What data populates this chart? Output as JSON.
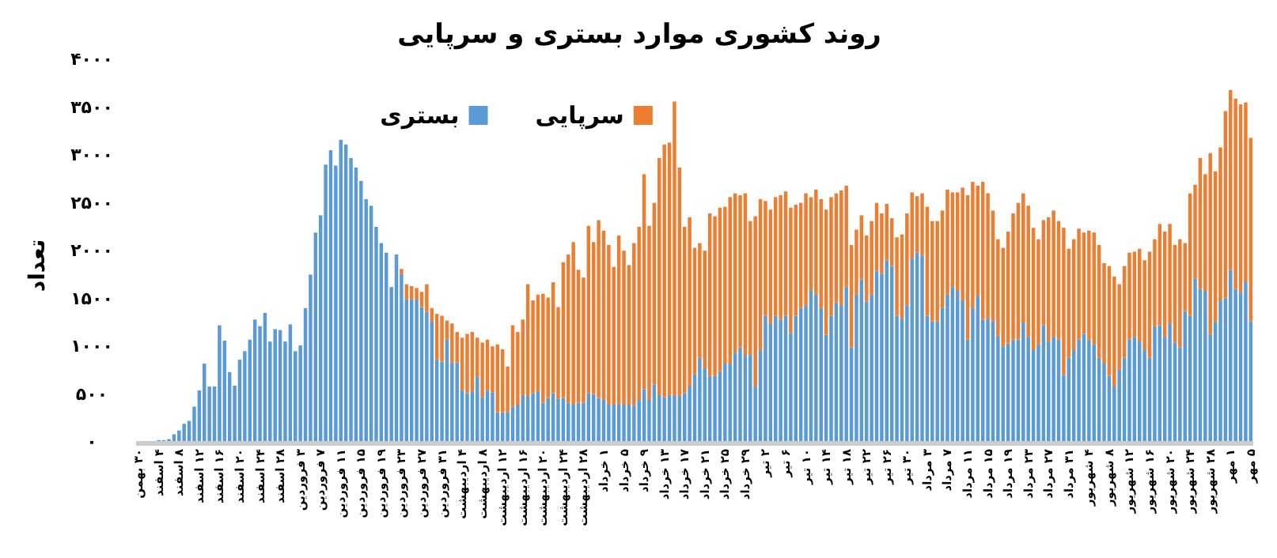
{
  "chart_data": {
    "type": "bar",
    "stacked": true,
    "title": "روند کشوری موارد بستری و سرپایی",
    "ylabel": "تعداد",
    "legend": "top",
    "ylim": [
      0,
      4000
    ],
    "yticks": [
      {
        "value": 0,
        "label": "۰"
      },
      {
        "value": 500,
        "label": "۵۰۰"
      },
      {
        "value": 1000,
        "label": "۱۰۰۰"
      },
      {
        "value": 1500,
        "label": "۱۵۰۰"
      },
      {
        "value": 2000,
        "label": "۲۰۰۰"
      },
      {
        "value": 2500,
        "label": "۲۵۰۰"
      },
      {
        "value": 3000,
        "label": "۳۰۰۰"
      },
      {
        "value": 3500,
        "label": "۳۵۰۰"
      },
      {
        "value": 4000,
        "label": "۴۰۰۰"
      }
    ],
    "categories": [
      "۳۰ بهمن",
      null,
      null,
      null,
      "۴ اسفند",
      null,
      null,
      null,
      "۸ اسفند",
      null,
      null,
      null,
      "۱۲ اسفند",
      null,
      null,
      null,
      "۱۶ اسفند",
      null,
      null,
      null,
      "۲۰ اسفند",
      null,
      null,
      null,
      "۲۴ اسفند",
      null,
      null,
      null,
      "۲۸ اسفند",
      null,
      null,
      null,
      "۳ فروردین",
      null,
      null,
      null,
      "۷ فروردین",
      null,
      null,
      null,
      "۱۱ فروردین",
      null,
      null,
      null,
      "۱۵ فروردین",
      null,
      null,
      null,
      "۱۹ فروردین",
      null,
      null,
      null,
      "۲۳ فروردین",
      null,
      null,
      null,
      "۲۷ فروردین",
      null,
      null,
      null,
      "۳۱ فروردین",
      null,
      null,
      null,
      "۴ اردیبهشت",
      null,
      null,
      null,
      "۸ اردیبهشت",
      null,
      null,
      null,
      "۱۲ اردیبهشت",
      null,
      null,
      null,
      "۱۶ اردیبهشت",
      null,
      null,
      null,
      "۲۰ اردیبهشت",
      null,
      null,
      null,
      "۲۴ اردیبهشت",
      null,
      null,
      null,
      "۲۸ اردیبهشت",
      null,
      null,
      null,
      "۱ خرداد",
      null,
      null,
      null,
      "۵ خرداد",
      null,
      null,
      null,
      "۹ خرداد",
      null,
      null,
      null,
      "۱۳ خرداد",
      null,
      null,
      null,
      "۱۷ خرداد",
      null,
      null,
      null,
      "۲۱ خرداد",
      null,
      null,
      null,
      "۲۵ خرداد",
      null,
      null,
      null,
      "۲۹ خرداد",
      null,
      null,
      null,
      "۲ تیر",
      null,
      null,
      null,
      "۶ تیر",
      null,
      null,
      null,
      "۱۰ تیر",
      null,
      null,
      null,
      "۱۴ تیر",
      null,
      null,
      null,
      "۱۸ تیر",
      null,
      null,
      null,
      "۲۲ تیر",
      null,
      null,
      null,
      "۲۶ تیر",
      null,
      null,
      null,
      "۳۰ تیر",
      null,
      null,
      null,
      "۳ مرداد",
      null,
      null,
      null,
      "۷ مرداد",
      null,
      null,
      null,
      "۱۱ مرداد",
      null,
      null,
      null,
      "۱۵ مرداد",
      null,
      null,
      null,
      "۱۹ مرداد",
      null,
      null,
      null,
      "۲۳ مرداد",
      null,
      null,
      null,
      "۲۷ مرداد",
      null,
      null,
      null,
      "۳۱ مرداد",
      null,
      null,
      null,
      "۴ شهریور",
      null,
      null,
      null,
      "۸ شهریور",
      null,
      null,
      null,
      "۱۲ شهریور",
      null,
      null,
      null,
      "۱۶ شهریور",
      null,
      null,
      null,
      "۲۰ شهریور",
      null,
      null,
      null,
      "۲۴ شهریور",
      null,
      null,
      null,
      "۲۸ شهریور",
      null,
      null,
      null,
      "۱ مهر",
      null,
      null,
      null,
      "۵ مهر"
    ],
    "series": [
      {
        "name": "بستری",
        "color": "#5b9bd5",
        "values": [
          0,
          0,
          0,
          0,
          10,
          10,
          20,
          70,
          110,
          180,
          210,
          360,
          530,
          810,
          570,
          570,
          1210,
          1050,
          720,
          580,
          850,
          940,
          1060,
          1270,
          1200,
          1340,
          1040,
          1170,
          1160,
          1040,
          1220,
          940,
          1000,
          1390,
          1740,
          2180,
          2360,
          2890,
          3040,
          2880,
          3150,
          3100,
          2960,
          2860,
          2720,
          2530,
          2460,
          2240,
          2070,
          1970,
          1610,
          1950,
          1750,
          1480,
          1480,
          1480,
          1400,
          1350,
          1250,
          850,
          830,
          1060,
          820,
          820,
          530,
          500,
          520,
          670,
          460,
          530,
          510,
          300,
          300,
          300,
          360,
          380,
          480,
          470,
          500,
          520,
          400,
          450,
          500,
          440,
          450,
          400,
          380,
          400,
          400,
          500,
          490,
          450,
          430,
          380,
          380,
          390,
          380,
          380,
          370,
          430,
          540,
          430,
          590,
          480,
          460,
          480,
          480,
          470,
          500,
          570,
          700,
          870,
          760,
          680,
          680,
          730,
          810,
          810,
          920,
          980,
          900,
          900,
          570,
          950,
          1310,
          1230,
          1310,
          1270,
          1310,
          1130,
          1310,
          1390,
          1420,
          1580,
          1530,
          1390,
          1110,
          1310,
          1450,
          1420,
          1610,
          980,
          1530,
          1690,
          1460,
          1530,
          1780,
          1750,
          1890,
          1830,
          1310,
          1280,
          1420,
          1910,
          1970,
          1940,
          1310,
          1250,
          1250,
          1390,
          1530,
          1610,
          1570,
          1470,
          1060,
          1390,
          1520,
          1270,
          1280,
          1250,
          1100,
          990,
          1020,
          1060,
          1060,
          1240,
          1090,
          950,
          1010,
          1210,
          1040,
          1090,
          1060,
          690,
          870,
          950,
          1060,
          1120,
          1060,
          1010,
          870,
          810,
          680,
          570,
          750,
          870,
          1060,
          1090,
          1040,
          950,
          870,
          1200,
          1210,
          1090,
          1230,
          1030,
          980,
          1360,
          1310,
          1700,
          1590,
          1570,
          1120,
          1250,
          1470,
          1500,
          1790,
          1590,
          1560,
          1670,
          1250
        ]
      },
      {
        "name": "سرپایی",
        "color": "#ed7d31",
        "values": [
          0,
          0,
          0,
          0,
          0,
          0,
          0,
          0,
          0,
          0,
          0,
          0,
          0,
          0,
          0,
          0,
          0,
          0,
          0,
          0,
          0,
          0,
          0,
          0,
          0,
          0,
          0,
          0,
          0,
          0,
          0,
          0,
          0,
          0,
          0,
          0,
          0,
          0,
          0,
          0,
          0,
          0,
          0,
          0,
          0,
          0,
          0,
          0,
          0,
          0,
          0,
          0,
          50,
          160,
          140,
          120,
          160,
          290,
          140,
          480,
          480,
          200,
          410,
          320,
          550,
          620,
          620,
          410,
          570,
          530,
          480,
          710,
          660,
          480,
          850,
          760,
          790,
          1170,
          970,
          1010,
          1140,
          1050,
          1160,
          960,
          1420,
          1550,
          1700,
          1390,
          1310,
          1750,
          1590,
          1860,
          1770,
          1670,
          1440,
          1760,
          1610,
          1460,
          1700,
          1810,
          2250,
          1820,
          1900,
          2480,
          2640,
          2640,
          3070,
          2390,
          1740,
          1770,
          1320,
          1200,
          1230,
          1700,
          1670,
          1710,
          1640,
          1740,
          1670,
          1590,
          1690,
          1400,
          1780,
          1580,
          1200,
          1190,
          1240,
          1300,
          1300,
          1310,
          1160,
          1100,
          1170,
          970,
          1100,
          1140,
          1310,
          1240,
          1140,
          1200,
          1060,
          1070,
          680,
          670,
          690,
          770,
          710,
          630,
          590,
          500,
          820,
          880,
          960,
          690,
          590,
          650,
          1140,
          1050,
          1050,
          1020,
          1100,
          990,
          1030,
          1180,
          1510,
          1320,
          1150,
          1440,
          1310,
          1160,
          1010,
          1030,
          1170,
          1320,
          1430,
          1350,
          1370,
          1280,
          1100,
          1100,
          1300,
          1320,
          1240,
          1540,
          1140,
          1160,
          1160,
          1060,
          1140,
          1170,
          1180,
          1050,
          1150,
          1150,
          890,
          960,
          910,
          890,
          970,
          940,
          1110,
          910,
          1060,
          1100,
          1040,
          1020,
          1130,
          710,
          1280,
          980,
          1370,
          1220,
          1890,
          1570,
          1600,
          1950,
          1880,
          1990,
          1960,
          1870,
          1920
        ]
      }
    ]
  }
}
